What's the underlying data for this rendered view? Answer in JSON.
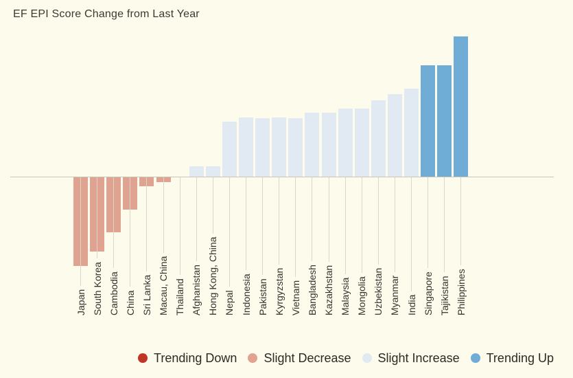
{
  "title": "EF EPI Score Change from Last Year",
  "legend": {
    "items": [
      {
        "label": "Trending Down",
        "color": "#C13527"
      },
      {
        "label": "Slight Decrease",
        "color": "#E0A291"
      },
      {
        "label": "Slight Increase",
        "color": "#E1EAF2"
      },
      {
        "label": "Trending Up",
        "color": "#6FACD6"
      }
    ]
  },
  "chart_data": {
    "type": "bar",
    "title": "EF EPI Score Change from Last Year",
    "xlabel": "",
    "ylabel": "",
    "units": "relative score change (no numeric axis shown; values are signed bar lengths in screen px)",
    "grid": false,
    "y_axis_visible": false,
    "baseline": 0,
    "legend_position": "bottom",
    "categories": [
      "Japan",
      "South Korea",
      "Cambodia",
      "China",
      "Sri Lanka",
      "Macau, China",
      "Thailand",
      "Afghanistan",
      "Hong Kong, China",
      "Nepal",
      "Indonesia",
      "Pakistan",
      "Kyrgyzstan",
      "Vietnam",
      "Bangladesh",
      "Kazakhstan",
      "Malaysia",
      "Mongolia",
      "Uzbekistan",
      "Myanmar",
      "India",
      "Singapore",
      "Tajikistan",
      "Philippines"
    ],
    "values": [
      -129,
      -108,
      -80,
      -47,
      -13,
      -7,
      0,
      15,
      15,
      80,
      86,
      85,
      86,
      85,
      93,
      93,
      99,
      99,
      111,
      120,
      128,
      162,
      162,
      204
    ],
    "series_classes": [
      "slight-decrease",
      "slight-decrease",
      "slight-decrease",
      "slight-decrease",
      "slight-decrease",
      "slight-decrease",
      "none",
      "slight-increase",
      "slight-increase",
      "slight-increase",
      "slight-increase",
      "slight-increase",
      "slight-increase",
      "slight-increase",
      "slight-increase",
      "slight-increase",
      "slight-increase",
      "slight-increase",
      "slight-increase",
      "slight-increase",
      "slight-increase",
      "trending-up",
      "trending-up",
      "trending-up"
    ],
    "class_colors": {
      "trending-down": "#C13527",
      "slight-decrease": "#E0A291",
      "slight-increase": "#E1EAF2",
      "trending-up": "#6FACD6"
    }
  },
  "colors": {
    "background": "#FDFBEC",
    "axis_line": "#C9C6B8",
    "leader_line": "#DBD8C9",
    "text": "#3B3A32"
  }
}
